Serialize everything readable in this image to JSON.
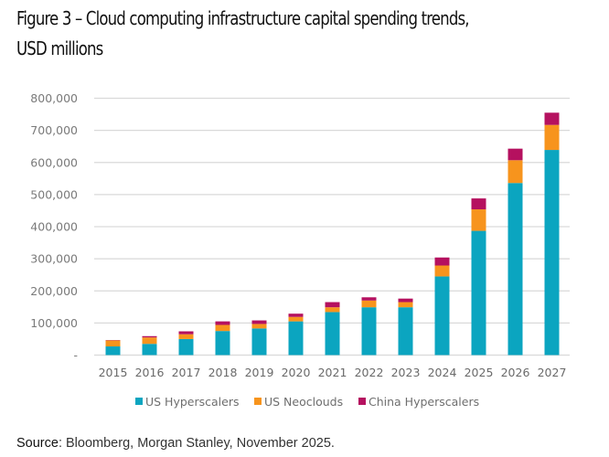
{
  "chart_data": {
    "type": "bar",
    "stacked": true,
    "title": "Figure 3 – Cloud computing infrastructure capital spending trends, USD millions",
    "xlabel": "",
    "ylabel": "",
    "ylim": [
      0,
      800000
    ],
    "yticks": [
      0,
      100000,
      200000,
      300000,
      400000,
      500000,
      600000,
      700000,
      800000
    ],
    "ytick_labels": [
      "-",
      "100,000",
      "200,000",
      "300,000",
      "400,000",
      "500,000",
      "600,000",
      "700,000",
      "800,000"
    ],
    "grid": true,
    "legend_position": "bottom-center",
    "categories": [
      "2015",
      "2016",
      "2017",
      "2018",
      "2019",
      "2020",
      "2021",
      "2022",
      "2023",
      "2024",
      "2025",
      "2026",
      "2027"
    ],
    "series": [
      {
        "name": "US Hyperscalers",
        "color": "#0ba5c0",
        "values": [
          27000,
          35000,
          50000,
          75000,
          83000,
          105000,
          134000,
          149000,
          149000,
          245000,
          387000,
          536000,
          639000
        ]
      },
      {
        "name": "US Neoclouds",
        "color": "#f7941d",
        "values": [
          19000,
          20000,
          15000,
          19000,
          14000,
          14000,
          15000,
          21000,
          16000,
          34000,
          67000,
          71000,
          78000
        ]
      },
      {
        "name": "China Hyperscalers",
        "color": "#b5115f",
        "values": [
          1000,
          4000,
          9000,
          11000,
          11000,
          10000,
          16000,
          10000,
          11000,
          25000,
          34000,
          36000,
          38000
        ]
      }
    ]
  },
  "title_line1": "Figure 3 – Cloud computing infrastructure capital spending trends,",
  "title_line2": "USD millions",
  "source": {
    "label": "Source",
    "text": ": Bloomberg, Morgan Stanley, November 2025."
  },
  "colors": {
    "grid": "#d9d9d9"
  }
}
